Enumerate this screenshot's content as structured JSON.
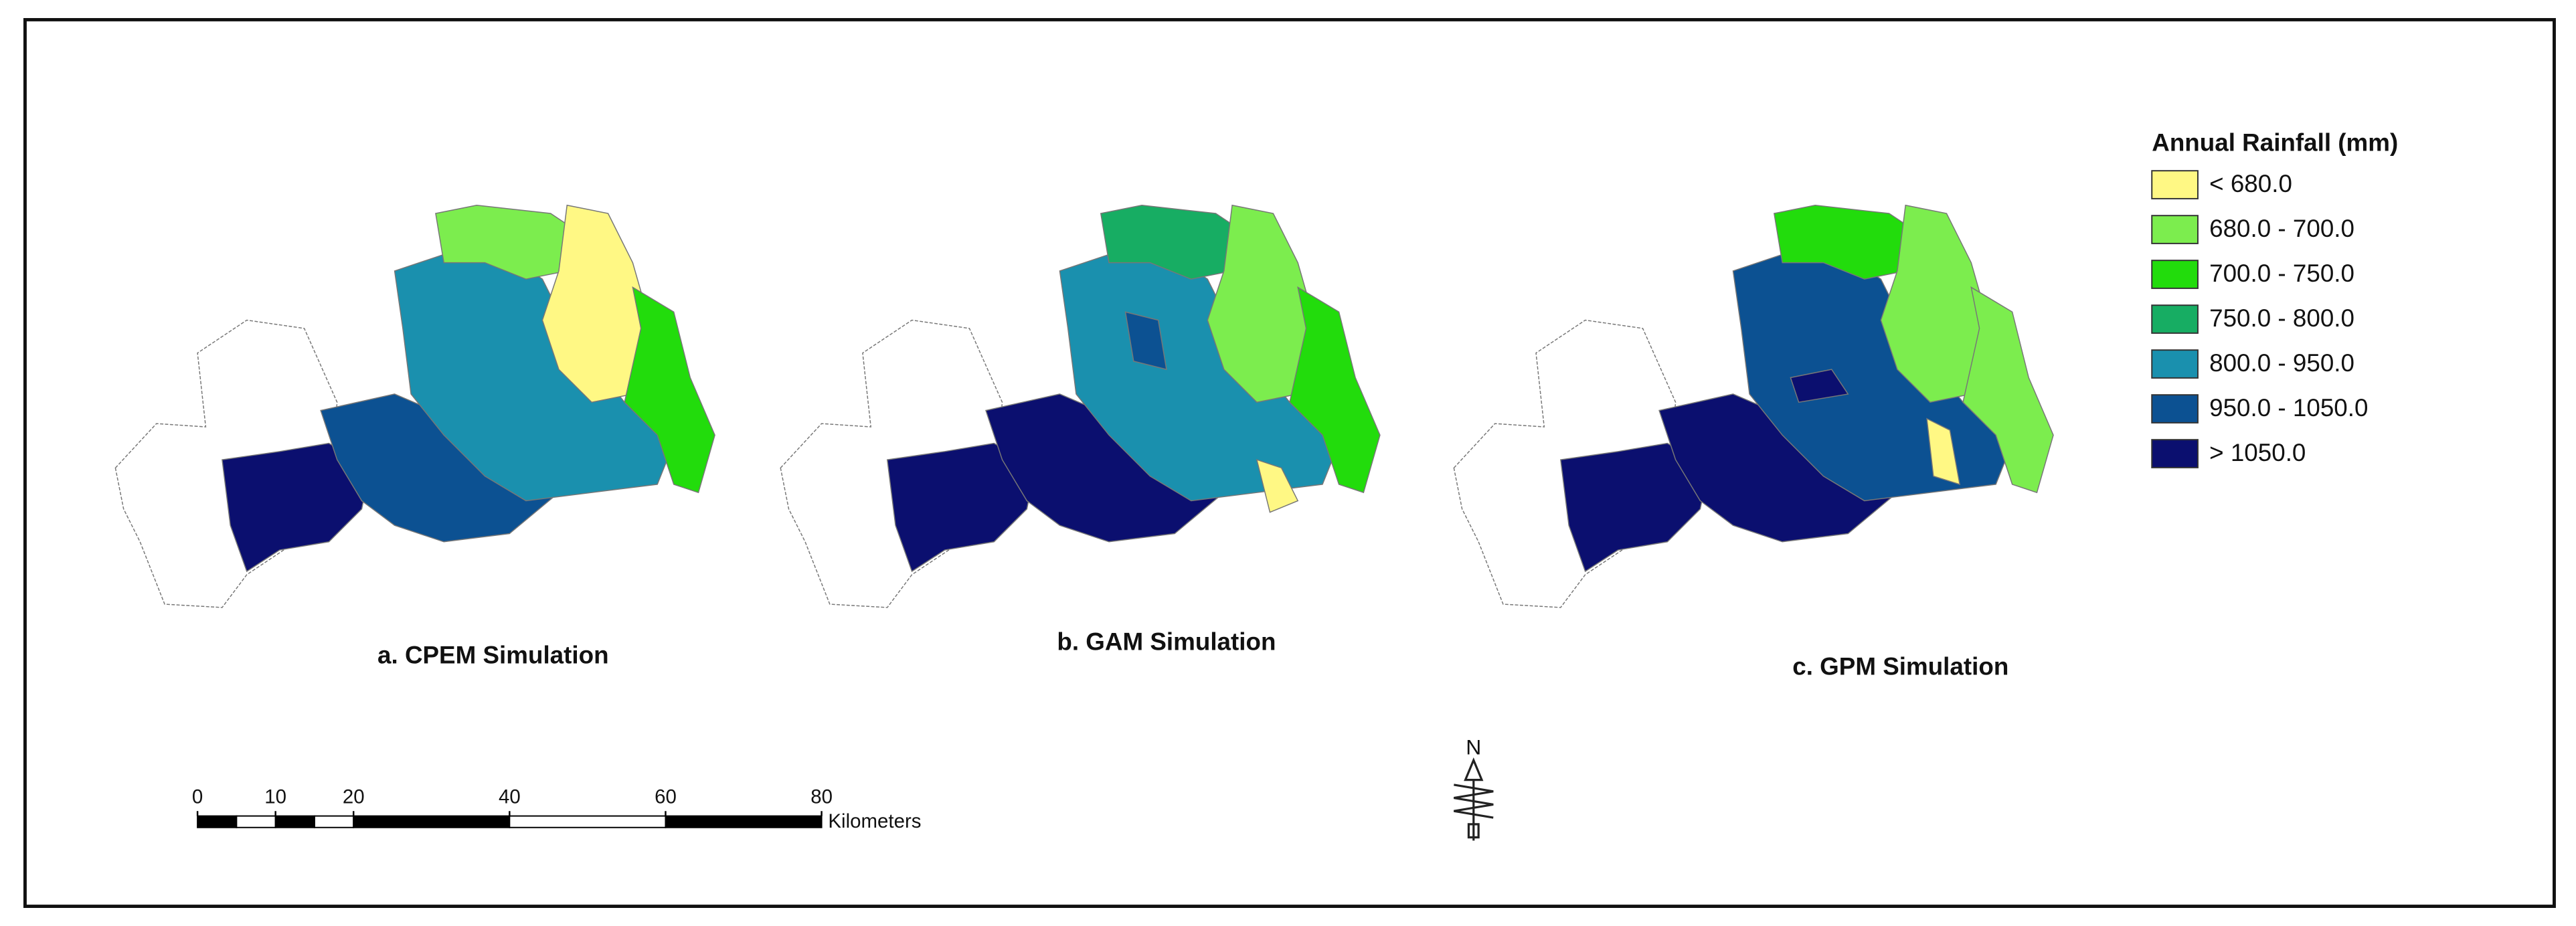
{
  "legend": {
    "title": "Annual Rainfall (mm)",
    "items": [
      {
        "label": "< 680.0",
        "color": "#fff884"
      },
      {
        "label": "680.0 - 700.0",
        "color": "#7ced4e"
      },
      {
        "label": "700.0 - 750.0",
        "color": "#22dc0c"
      },
      {
        "label": "750.0 - 800.0",
        "color": "#17ad63"
      },
      {
        "label": "800.0 - 950.0",
        "color": "#1a90ae"
      },
      {
        "label": "950.0 - 1050.0",
        "color": "#0c5192"
      },
      {
        "label": "> 1050.0",
        "color": "#0b0f6f"
      }
    ]
  },
  "maps": [
    {
      "caption": "a. CPEM Simulation"
    },
    {
      "caption": "b. GAM Simulation"
    },
    {
      "caption": "c. GPM Simulation"
    }
  ],
  "scale_bar": {
    "ticks": [
      0,
      10,
      20,
      40,
      60,
      80
    ],
    "unit": "Kilometers"
  },
  "north_arrow": {
    "label": "N"
  }
}
